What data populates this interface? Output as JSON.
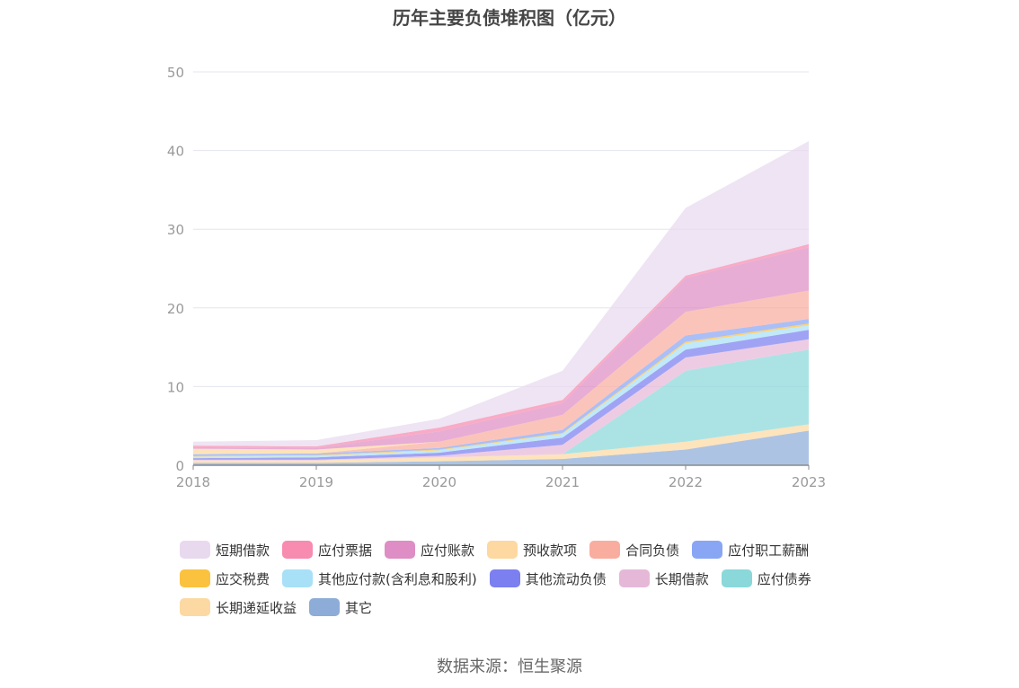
{
  "chart_data": {
    "type": "area",
    "stacked": true,
    "title": "历年主要负债堆积图（亿元）",
    "x": [
      "2018",
      "2019",
      "2020",
      "2021",
      "2022",
      "2023"
    ],
    "ylim": [
      0,
      50
    ],
    "yticks": [
      0,
      10,
      20,
      30,
      40,
      50
    ],
    "grid": true,
    "legend_position": "bottom",
    "series": [
      {
        "name": "其它",
        "color": "#8eacd8",
        "values": [
          0.3,
          0.3,
          0.5,
          0.8,
          2.0,
          4.4
        ]
      },
      {
        "name": "长期递延收益",
        "color": "#fcd9a2",
        "values": [
          0.3,
          0.3,
          0.5,
          0.6,
          1.0,
          0.8
        ]
      },
      {
        "name": "应付债券",
        "color": "#8ad8da",
        "values": [
          0,
          0,
          0,
          0,
          9.0,
          9.5
        ]
      },
      {
        "name": "长期借款",
        "color": "#e6b8d8",
        "values": [
          0.1,
          0.1,
          0.2,
          1.2,
          1.7,
          1.3
        ]
      },
      {
        "name": "其他流动负债",
        "color": "#7b7ff0",
        "values": [
          0.2,
          0.3,
          0.4,
          0.9,
          1.0,
          1.2
        ]
      },
      {
        "name": "其他应付款(含利息和股利)",
        "color": "#a8e0f8",
        "values": [
          0.2,
          0.2,
          0.3,
          0.5,
          0.8,
          0.6
        ]
      },
      {
        "name": "应交税费",
        "color": "#fbc23f",
        "values": [
          0.1,
          0.1,
          0.1,
          0.1,
          0.2,
          0.2
        ]
      },
      {
        "name": "应付职工薪酬",
        "color": "#89a6f5",
        "values": [
          0.2,
          0.2,
          0.2,
          0.4,
          0.8,
          0.6
        ]
      },
      {
        "name": "合同负债",
        "color": "#f9ad9f",
        "values": [
          0,
          0,
          0.8,
          1.9,
          3.0,
          3.6
        ]
      },
      {
        "name": "预收款项",
        "color": "#fdd8a0",
        "values": [
          0.7,
          0.5,
          0,
          0,
          0,
          0
        ]
      },
      {
        "name": "应付账款",
        "color": "#de8ec4",
        "values": [
          0.2,
          0.2,
          1.3,
          1.5,
          4.3,
          5.5
        ]
      },
      {
        "name": "应付票据",
        "color": "#f78bb0",
        "values": [
          0.2,
          0.2,
          0.5,
          0.4,
          0.3,
          0.4
        ]
      },
      {
        "name": "短期借款",
        "color": "#e8d9ef",
        "values": [
          0.5,
          0.8,
          1.1,
          3.7,
          8.6,
          13.1
        ]
      }
    ],
    "legend_order": [
      "短期借款",
      "应付票据",
      "应付账款",
      "预收款项",
      "合同负债",
      "应付职工薪酬",
      "应交税费",
      "其他应付款(含利息和股利)",
      "其他流动负债",
      "长期借款",
      "应付债券",
      "长期递延收益",
      "其它"
    ]
  },
  "source_text": "数据来源：恒生聚源"
}
